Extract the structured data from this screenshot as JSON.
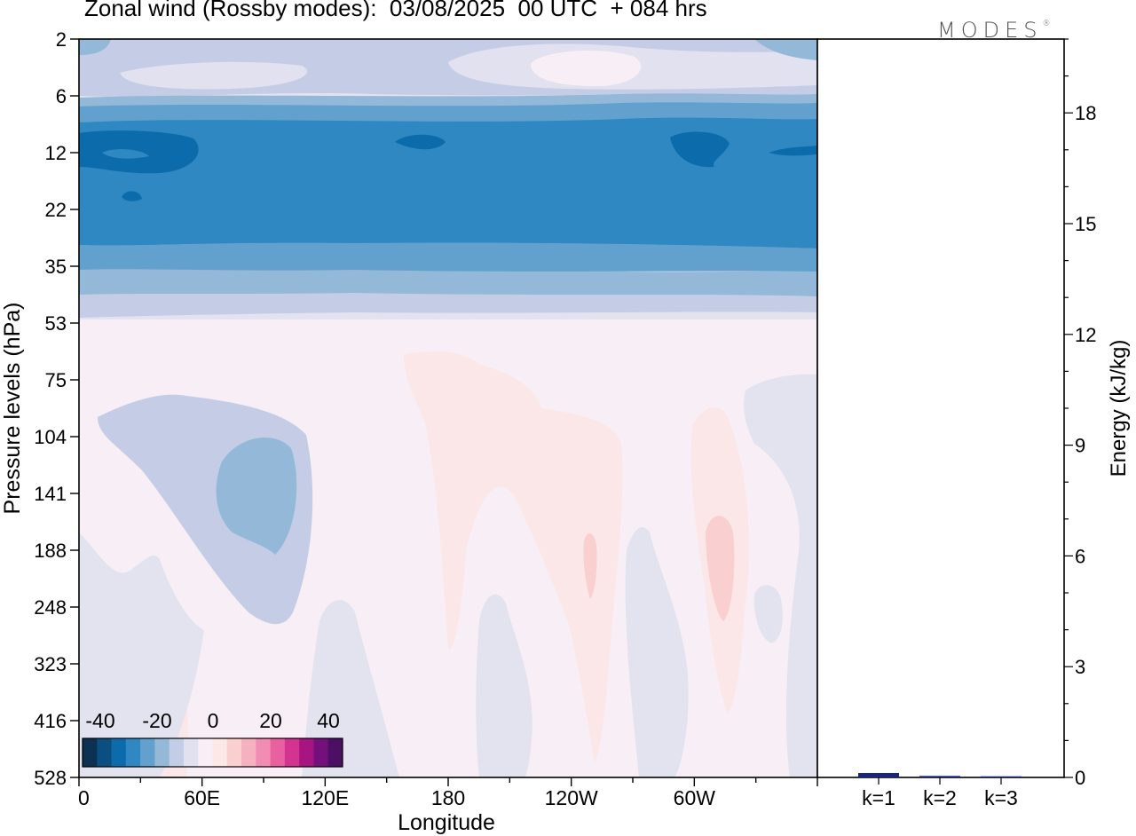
{
  "header": {
    "title": "Zonal wind (Rossby modes):  03/08/2025  00 UTC  + 084 hrs",
    "brand": "MODES",
    "brand_mark": "®"
  },
  "chart_data": [
    {
      "type": "heatmap",
      "variable": "Zonal wind",
      "xlabel": "Longitude",
      "ylabel": "Pressure levels (hPa)",
      "x_ticks": [
        "0",
        "60E",
        "120E",
        "180",
        "120W",
        "60W"
      ],
      "y_ticks": [
        "2",
        "6",
        "12",
        "22",
        "35",
        "53",
        "75",
        "104",
        "141",
        "188",
        "248",
        "323",
        "416",
        "528"
      ],
      "colorbar": {
        "tick_labels": [
          "-40",
          "-20",
          "0",
          "20",
          "40"
        ],
        "colors": [
          "#0c3152",
          "#0b4f80",
          "#0c6cab",
          "#2f88c1",
          "#62a1cd",
          "#94b8d8",
          "#c3cde6",
          "#e1e1ef",
          "#f8eef4",
          "#fce8e6",
          "#f9cfcf",
          "#f5b1bd",
          "#f08db0",
          "#e8609f",
          "#d33490",
          "#a81583",
          "#74107a",
          "#4b0f63"
        ]
      },
      "grid": false
    },
    {
      "type": "bar",
      "categories": [
        "k=1",
        "k=2",
        "k=3"
      ],
      "values": [
        0.12,
        0.04,
        0.03
      ],
      "ylabel": "Energy (kJ/kg)",
      "y_ticks": [
        "0",
        "3",
        "6",
        "9",
        "12",
        "15",
        "18"
      ],
      "ylim": [
        0,
        20
      ],
      "bar_color": "#1a237e",
      "grid": false
    }
  ]
}
